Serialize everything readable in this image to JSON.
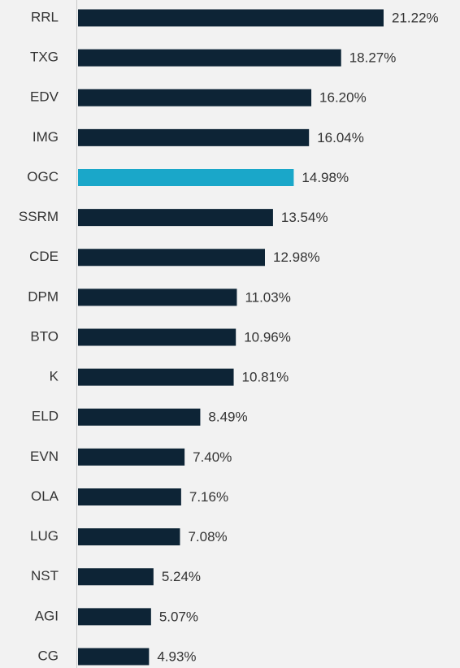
{
  "chart_data": {
    "type": "bar",
    "categories": [
      "RRL",
      "TXG",
      "EDV",
      "IMG",
      "OGC",
      "SSRM",
      "CDE",
      "DPM",
      "BTO",
      "K",
      "ELD",
      "EVN",
      "OLA",
      "LUG",
      "NST",
      "AGI",
      "CG"
    ],
    "values": [
      21.22,
      18.27,
      16.2,
      16.04,
      14.98,
      13.54,
      12.98,
      11.03,
      10.96,
      10.81,
      8.49,
      7.4,
      7.16,
      7.08,
      5.24,
      5.07,
      4.93
    ],
    "value_labels": [
      "21.22%",
      "18.27%",
      "16.20%",
      "16.04%",
      "14.98%",
      "13.54%",
      "12.98%",
      "11.03%",
      "10.96%",
      "10.81%",
      "8.49%",
      "7.40%",
      "7.16%",
      "7.08%",
      "5.24%",
      "5.07%",
      "4.93%"
    ],
    "colors": [
      "#0d2436",
      "#0d2436",
      "#0d2436",
      "#0d2436",
      "#1aa7c9",
      "#0d2436",
      "#0d2436",
      "#0d2436",
      "#0d2436",
      "#0d2436",
      "#0d2436",
      "#0d2436",
      "#0d2436",
      "#0d2436",
      "#0d2436",
      "#0d2436",
      "#0d2436"
    ]
  }
}
